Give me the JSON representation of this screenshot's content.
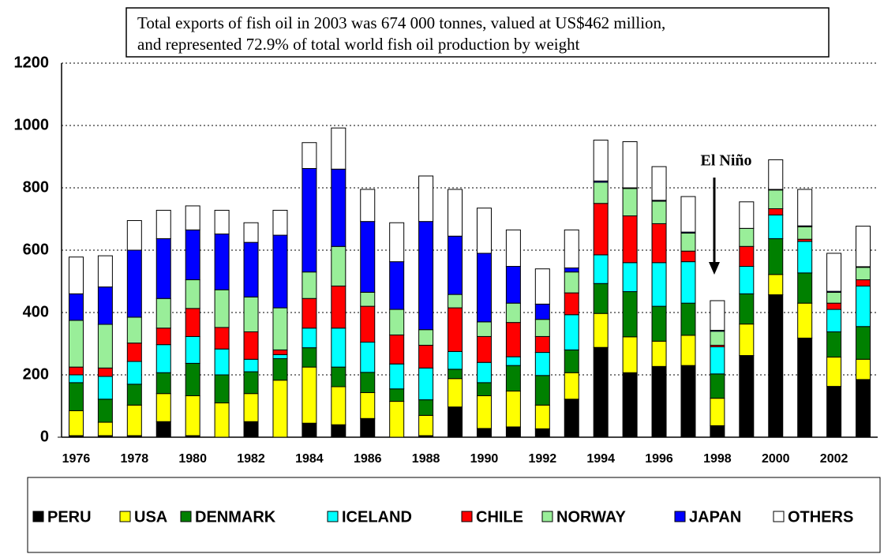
{
  "chart_data": {
    "type": "stacked_bar",
    "annotation_box": [
      "Total exports of fish oil in 2003 was  674 000 tonnes, valued at US$462 million,",
      "and represented 72.9% of total world fish oil production by weight"
    ],
    "annotation": "El Niño",
    "categories": [
      "1976",
      null,
      "1978",
      null,
      "1980",
      null,
      "1982",
      null,
      "1984",
      null,
      "1986",
      null,
      "1988",
      null,
      "1990",
      null,
      "1992",
      null,
      "1994",
      null,
      "1996",
      null,
      "1998",
      null,
      "2000",
      null,
      "2002",
      null
    ],
    "series": [
      {
        "name": "PERU",
        "color": "#000000",
        "values": [
          5,
          5,
          5,
          50,
          5,
          0,
          50,
          0,
          45,
          40,
          60,
          0,
          5,
          97,
          28,
          33,
          27,
          122,
          288,
          207,
          227,
          230,
          37,
          262,
          457,
          318,
          163,
          185
        ]
      },
      {
        "name": "USA",
        "color": "#ffff00",
        "values": [
          80,
          43,
          98,
          90,
          128,
          110,
          90,
          183,
          180,
          122,
          83,
          115,
          65,
          91,
          105,
          115,
          76,
          85,
          109,
          115,
          81,
          97,
          88,
          101,
          65,
          112,
          94,
          65
        ]
      },
      {
        "name": "DENMARK",
        "color": "#008000",
        "values": [
          90,
          74,
          67,
          67,
          104,
          90,
          70,
          69,
          62,
          63,
          65,
          40,
          50,
          30,
          42,
          82,
          95,
          73,
          96,
          145,
          112,
          103,
          78,
          97,
          115,
          97,
          81,
          105
        ]
      },
      {
        "name": "ICELAND",
        "color": "#00ffff",
        "values": [
          25,
          73,
          73,
          90,
          86,
          83,
          40,
          13,
          63,
          125,
          97,
          80,
          102,
          57,
          65,
          28,
          74,
          113,
          92,
          93,
          140,
          133,
          87,
          88,
          76,
          101,
          72,
          130
        ]
      },
      {
        "name": "CHILE",
        "color": "#ff0000",
        "values": [
          25,
          27,
          59,
          53,
          90,
          69,
          88,
          15,
          95,
          135,
          115,
          93,
          73,
          140,
          83,
          110,
          51,
          70,
          165,
          150,
          125,
          34,
          5,
          64,
          20,
          7,
          20,
          20
        ]
      },
      {
        "name": "NORWAY",
        "color": "#99ee99",
        "values": [
          150,
          140,
          83,
          95,
          92,
          121,
          112,
          135,
          85,
          127,
          45,
          82,
          50,
          43,
          47,
          62,
          55,
          67,
          68,
          88,
          72,
          58,
          45,
          58,
          60,
          40,
          35,
          40
        ]
      },
      {
        "name": "JAPAN",
        "color": "#0000ff",
        "values": [
          85,
          120,
          215,
          192,
          160,
          179,
          175,
          233,
          332,
          248,
          227,
          153,
          347,
          187,
          220,
          118,
          49,
          13,
          4,
          2,
          3,
          3,
          3,
          0,
          2,
          3,
          3,
          2
        ]
      },
      {
        "name": "OTHERS",
        "color": "#ffffff",
        "values": [
          118,
          100,
          95,
          91,
          77,
          76,
          63,
          80,
          83,
          132,
          103,
          125,
          146,
          150,
          145,
          117,
          113,
          122,
          131,
          148,
          108,
          114,
          95,
          85,
          95,
          117,
          122,
          130
        ]
      }
    ],
    "ylim": [
      0,
      1200
    ],
    "yticks": [
      0,
      200,
      400,
      600,
      800,
      1000,
      1200
    ],
    "grid": true
  }
}
